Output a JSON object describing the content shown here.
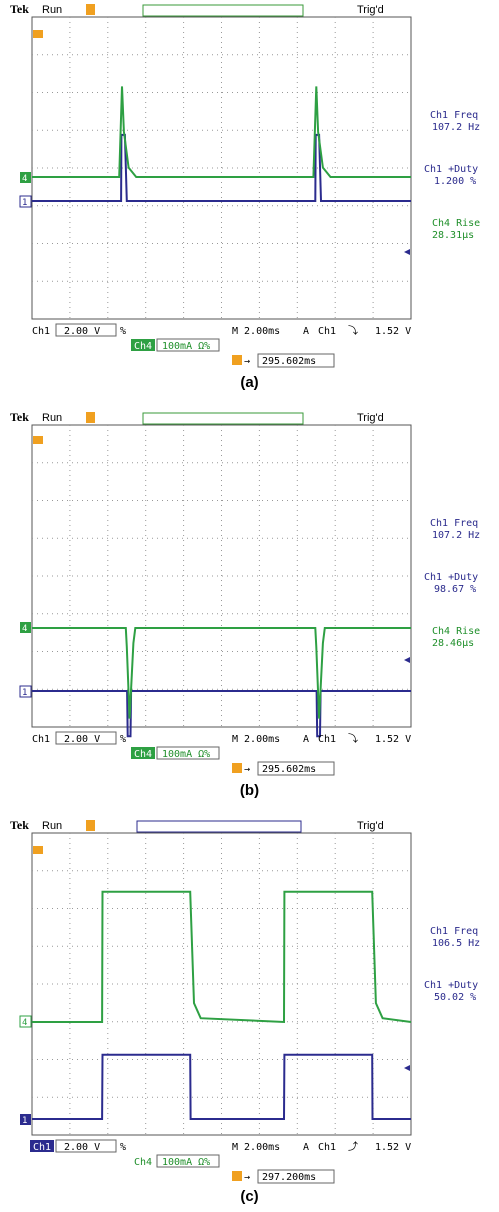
{
  "chart_data": [
    {
      "type": "line",
      "caption": "(a)",
      "header": {
        "brand": "Tek",
        "mode": "Run",
        "status": "Trig'd"
      },
      "time_axis": {
        "units": "ms",
        "per_div": 2.0,
        "divisions": 10,
        "range": [
          0,
          20
        ]
      },
      "grid": true,
      "series": [
        {
          "name": "Ch1",
          "color": "#2b2b8e",
          "x": [
            0,
            4.65,
            4.7,
            4.72,
            4.9,
            5.0,
            14.9,
            14.95,
            14.97,
            15.15,
            15.25,
            20
          ],
          "y": [
            0,
            0,
            0,
            1.75,
            1.75,
            0,
            0,
            0,
            1.75,
            1.75,
            0,
            0
          ]
        },
        {
          "name": "Ch4",
          "color": "#2ea043",
          "x": [
            0,
            4.6,
            4.75,
            4.85,
            5.1,
            5.5,
            14.85,
            15.0,
            15.1,
            15.35,
            15.75,
            20
          ],
          "y": [
            0,
            0,
            2.4,
            1.2,
            0.25,
            0,
            0,
            2.4,
            1.2,
            0.25,
            0,
            0
          ]
        }
      ],
      "measurements": [
        {
          "label": "Ch1 Freq",
          "value": "107.2 Hz",
          "color": "#2b2b8e"
        },
        {
          "label": "Ch1 +Duty",
          "value": "1.200 %",
          "color": "#2b2b8e"
        },
        {
          "label": "Ch4 Rise",
          "value": "28.31µs",
          "color": "#1f8f2a"
        }
      ],
      "footer": {
        "ch1_label": "Ch1",
        "ch1_scale": "2.00 V",
        "ch1_sym": "%",
        "timebase": "M 2.00ms",
        "trig_src": "A",
        "trig_ch": "Ch1",
        "trig_edge": "falling",
        "trig_level": "1.52 V",
        "ch4_label": "Ch4",
        "ch4_scale": "100mA Ω%",
        "position": "295.602ms"
      }
    },
    {
      "type": "line",
      "caption": "(b)",
      "header": {
        "brand": "Tek",
        "mode": "Run",
        "status": "Trig'd"
      },
      "time_axis": {
        "units": "ms",
        "per_div": 2.0,
        "divisions": 10,
        "range": [
          0,
          20
        ]
      },
      "grid": true,
      "series": [
        {
          "name": "Ch1",
          "color": "#2b2b8e",
          "x": [
            0,
            5.0,
            5.02,
            5.05,
            5.2,
            5.23,
            15.0,
            15.02,
            15.05,
            15.2,
            15.23,
            20
          ],
          "y": [
            0,
            0,
            0,
            -1.2,
            -1.2,
            0,
            0,
            0,
            -1.2,
            -1.2,
            0,
            0
          ]
        },
        {
          "name": "Ch4",
          "color": "#2ea043",
          "x": [
            0,
            4.95,
            5.0,
            5.15,
            5.35,
            5.45,
            14.95,
            15.0,
            15.15,
            15.35,
            15.45,
            20
          ],
          "y": [
            0,
            0,
            -0.5,
            -2.4,
            -0.4,
            0,
            0,
            -0.5,
            -2.4,
            -0.4,
            0,
            0
          ]
        }
      ],
      "measurements": [
        {
          "label": "Ch1 Freq",
          "value": "107.2 Hz",
          "color": "#2b2b8e"
        },
        {
          "label": "Ch1 +Duty",
          "value": "98.67 %",
          "color": "#2b2b8e"
        },
        {
          "label": "Ch4 Rise",
          "value": "28.46µs",
          "color": "#1f8f2a"
        }
      ],
      "footer": {
        "ch1_label": "Ch1",
        "ch1_scale": "2.00 V",
        "ch1_sym": "%",
        "timebase": "M 2.00ms",
        "trig_src": "A",
        "trig_ch": "Ch1",
        "trig_edge": "falling",
        "trig_level": "1.52 V",
        "ch4_label": "Ch4",
        "ch4_scale": "100mA Ω%",
        "position": "295.602ms"
      }
    },
    {
      "type": "line",
      "caption": "(c)",
      "header": {
        "brand": "Tek",
        "mode": "Run",
        "status": "Trig'd"
      },
      "time_axis": {
        "units": "ms",
        "per_div": 2.0,
        "divisions": 10,
        "range": [
          0,
          20
        ]
      },
      "grid": true,
      "series": [
        {
          "name": "Ch1",
          "color": "#2b2b8e",
          "x": [
            0,
            3.7,
            3.72,
            8.35,
            8.37,
            13.3,
            13.32,
            17.95,
            17.97,
            20
          ],
          "y": [
            0,
            0,
            1.7,
            1.7,
            0,
            0,
            1.7,
            1.7,
            0,
            0
          ]
        },
        {
          "name": "Ch4",
          "color": "#2ea043",
          "x": [
            0,
            3.7,
            3.72,
            8.35,
            8.55,
            8.9,
            13.3,
            13.32,
            17.95,
            18.15,
            18.5,
            20
          ],
          "y": [
            0,
            0,
            3.45,
            3.45,
            0.5,
            0.1,
            0,
            3.45,
            3.45,
            0.5,
            0.1,
            0
          ]
        }
      ],
      "measurements": [
        {
          "label": "Ch1 Freq",
          "value": "106.5 Hz",
          "color": "#2b2b8e"
        },
        {
          "label": "Ch1 +Duty",
          "value": "50.02 %",
          "color": "#2b2b8e"
        }
      ],
      "footer": {
        "ch1_label": "Ch1",
        "ch1_scale": "2.00 V",
        "ch1_sym": "%",
        "timebase": "M 2.00ms",
        "trig_src": "A",
        "trig_ch": "Ch1",
        "trig_edge": "rising",
        "trig_level": "1.52 V",
        "ch4_label": "Ch4",
        "ch4_scale": "100mA Ω%",
        "position": "297.200ms"
      }
    }
  ]
}
